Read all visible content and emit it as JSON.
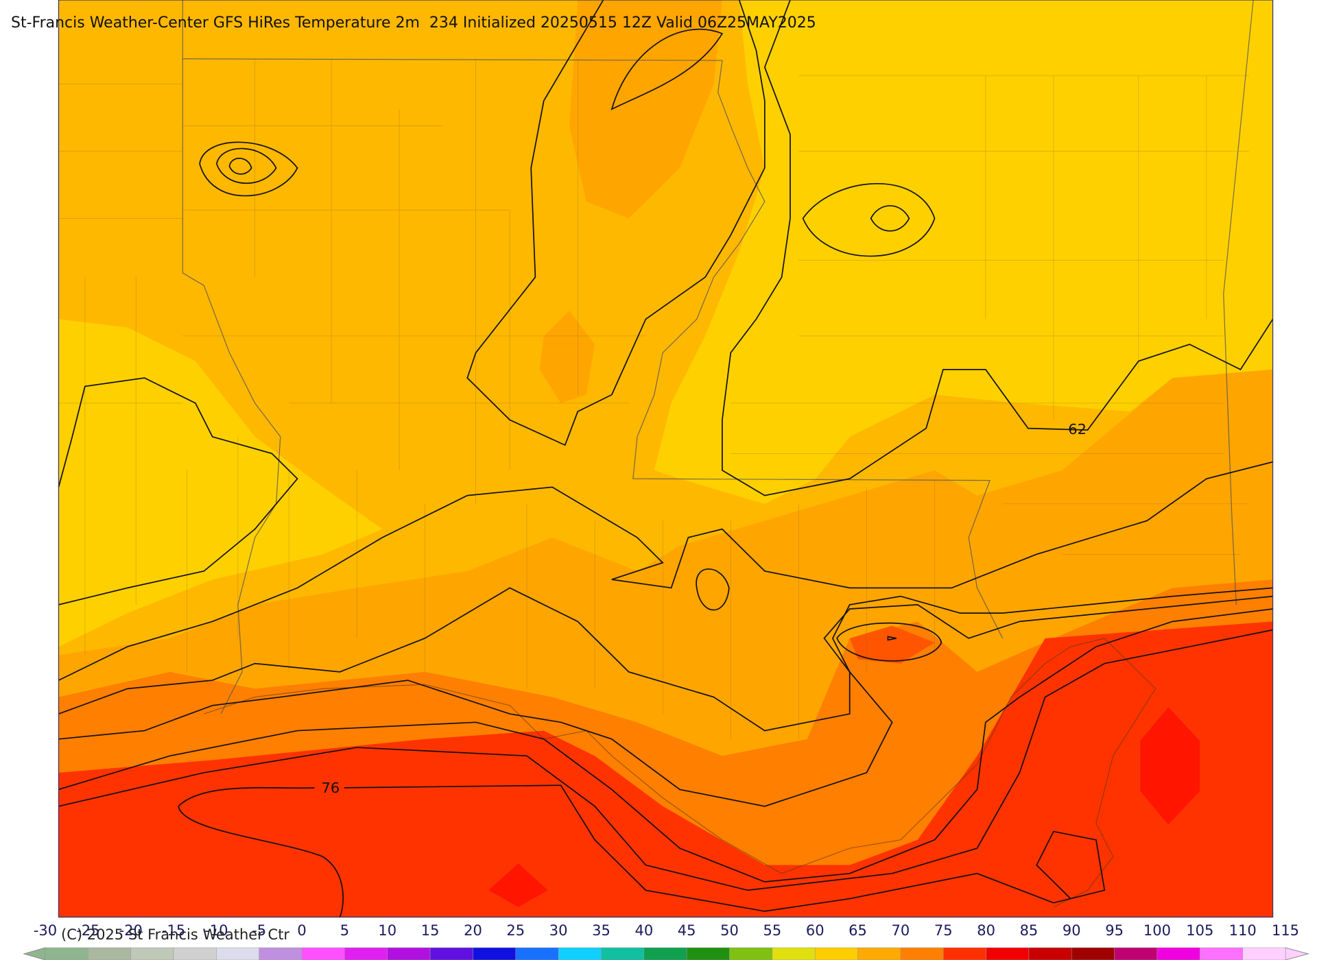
{
  "header": {
    "title": "St-Francis Weather-Center GFS HiRes Temperature 2m  234 Initialized 20250515 12Z Valid 06Z25MAY2025"
  },
  "contour_labels": [
    "62",
    "76"
  ],
  "colorbar": {
    "ticks": [
      -30,
      -25,
      -20,
      -15,
      -10,
      -5,
      0,
      5,
      10,
      15,
      20,
      25,
      30,
      35,
      40,
      45,
      50,
      55,
      60,
      65,
      70,
      75,
      80,
      85,
      90,
      95,
      100,
      105,
      110,
      115
    ],
    "colors": [
      "#8fb58f",
      "#aab8a0",
      "#c0c8b8",
      "#d0d0d0",
      "#dcdcec",
      "#c090e0",
      "#ff50ff",
      "#e020f0",
      "#b010e0",
      "#6010e0",
      "#1010e0",
      "#1870ff",
      "#10d0ff",
      "#10c0a0",
      "#10a050",
      "#209010",
      "#80c010",
      "#e0e010",
      "#ffcc00",
      "#ffaa00",
      "#ff8000",
      "#ff3000",
      "#f00000",
      "#c80000",
      "#a00000",
      "#c00070",
      "#f000e0",
      "#ff70ff",
      "#ffd0ff"
    ]
  },
  "footer": {
    "copyright": "(C) 2025 St Francis Weather Ctr"
  }
}
